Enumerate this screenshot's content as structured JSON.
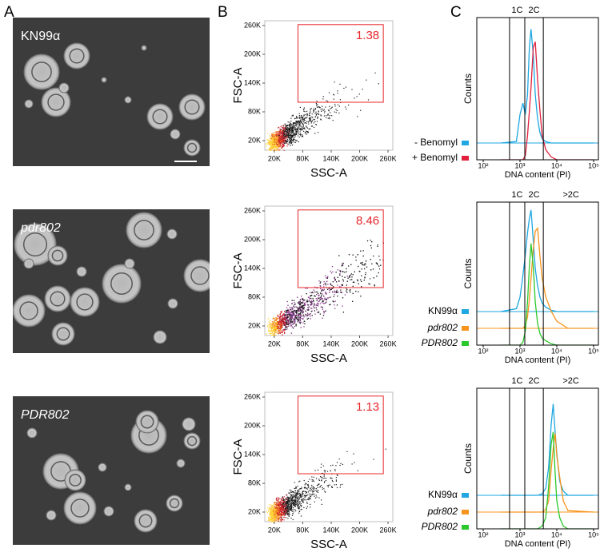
{
  "panel_labels": [
    "A",
    "B",
    "C"
  ],
  "images": [
    {
      "label": "KN99α",
      "italic": false
    },
    {
      "label": "pdr802",
      "italic": true
    },
    {
      "label": "PDR802",
      "italic": true
    }
  ],
  "chart_data": [
    {
      "type": "scatter-density",
      "xlabel": "SSC-A",
      "ylabel": "FSC-A",
      "xlim": [
        0,
        270000
      ],
      "ylim": [
        0,
        270000
      ],
      "xticks": [
        {
          "value": 20000,
          "label": "20K"
        },
        {
          "value": 80000,
          "label": "80K"
        },
        {
          "value": 140000,
          "label": "140K"
        },
        {
          "value": 200000,
          "label": "200K"
        },
        {
          "value": 260000,
          "label": "260K"
        }
      ],
      "yticks": [
        {
          "value": 20000,
          "label": "20K"
        },
        {
          "value": 80000,
          "label": "80K"
        },
        {
          "value": 140000,
          "label": "140K"
        },
        {
          "value": 200000,
          "label": "200K"
        },
        {
          "value": 260000,
          "label": "260K"
        }
      ],
      "gate_x": [
        70000,
        250000
      ],
      "gate_y": [
        100000,
        262000
      ],
      "gate_percent": 1.38,
      "gate_color": "#e8252a"
    },
    {
      "type": "scatter-density",
      "xlabel": "SSC-A",
      "ylabel": "FSC-A",
      "xlim": [
        0,
        270000
      ],
      "ylim": [
        0,
        270000
      ],
      "xticks": [
        {
          "value": 20000,
          "label": "20K"
        },
        {
          "value": 80000,
          "label": "80K"
        },
        {
          "value": 140000,
          "label": "140K"
        },
        {
          "value": 200000,
          "label": "200K"
        },
        {
          "value": 260000,
          "label": "260K"
        }
      ],
      "yticks": [
        {
          "value": 20000,
          "label": "20K"
        },
        {
          "value": 80000,
          "label": "80K"
        },
        {
          "value": 140000,
          "label": "140K"
        },
        {
          "value": 200000,
          "label": "200K"
        },
        {
          "value": 260000,
          "label": "260K"
        }
      ],
      "gate_x": [
        70000,
        250000
      ],
      "gate_y": [
        100000,
        262000
      ],
      "gate_percent": 8.46,
      "gate_color": "#e8252a"
    },
    {
      "type": "scatter-density",
      "xlabel": "SSC-A",
      "ylabel": "FSC-A",
      "xlim": [
        0,
        270000
      ],
      "ylim": [
        0,
        270000
      ],
      "xticks": [
        {
          "value": 20000,
          "label": "20K"
        },
        {
          "value": 80000,
          "label": "80K"
        },
        {
          "value": 140000,
          "label": "140K"
        },
        {
          "value": 200000,
          "label": "200K"
        },
        {
          "value": 260000,
          "label": "260K"
        }
      ],
      "yticks": [
        {
          "value": 20000,
          "label": "20K"
        },
        {
          "value": 80000,
          "label": "80K"
        },
        {
          "value": 140000,
          "label": "140K"
        },
        {
          "value": 200000,
          "label": "200K"
        },
        {
          "value": 260000,
          "label": "260K"
        }
      ],
      "gate_x": [
        70000,
        250000
      ],
      "gate_y": [
        100000,
        262000
      ],
      "gate_percent": 1.13,
      "gate_color": "#e8252a"
    },
    {
      "type": "histogram-overlay",
      "xlabel": "DNA content (PI)",
      "ylabel": "Counts",
      "log_x": true,
      "xlim": [
        67,
        135000
      ],
      "ylim": [
        0,
        100
      ],
      "xticks": [
        {
          "value": 100,
          "label": "10²"
        },
        {
          "value": 1000,
          "label": "10³"
        },
        {
          "value": 10000,
          "label": "10⁴"
        },
        {
          "value": 100000,
          "label": "10⁵"
        }
      ],
      "gate_lines": [
        520,
        1350,
        4300
      ],
      "gate_labels": [
        "1C",
        "2C"
      ],
      "x": [
        300,
        800,
        1000,
        1200,
        1400,
        1600,
        1800,
        2000,
        2300,
        2600,
        3000,
        3500,
        4000,
        5000,
        7000,
        10000,
        20000,
        100000
      ],
      "series": [
        {
          "name": "- Benomyl",
          "color": "#1ea7e1",
          "italic": false,
          "values": [
            0,
            1,
            20,
            28,
            20,
            34,
            67,
            80,
            62,
            34,
            17,
            7,
            3,
            1,
            0,
            0,
            0,
            0
          ]
        },
        {
          "name": "+ Benomyl",
          "color": "#e0203c",
          "italic": false,
          "values": [
            0,
            0,
            0,
            0,
            3,
            17,
            34,
            51,
            79,
            83,
            56,
            34,
            17,
            7,
            2,
            0,
            0,
            0
          ]
        }
      ]
    },
    {
      "type": "histogram-overlay",
      "xlabel": "DNA content (PI)",
      "ylabel": "Counts",
      "log_x": true,
      "xlim": [
        67,
        135000
      ],
      "ylim": [
        0,
        100
      ],
      "xticks": [
        {
          "value": 100,
          "label": "10²"
        },
        {
          "value": 1000,
          "label": "10³"
        },
        {
          "value": 10000,
          "label": "10⁴"
        },
        {
          "value": 100000,
          "label": "10⁵"
        }
      ],
      "gate_lines": [
        520,
        1350,
        4300
      ],
      "gate_labels": [
        "1C",
        "2C",
        ">2C"
      ],
      "x": [
        300,
        800,
        1000,
        1200,
        1400,
        1600,
        1800,
        2000,
        2300,
        2600,
        3000,
        3500,
        4000,
        5000,
        7000,
        10000,
        20000,
        100000
      ],
      "series": [
        {
          "name": "KN99α",
          "color": "#1ea7e1",
          "italic": false,
          "values": [
            0,
            2,
            10,
            25,
            40,
            55,
            65,
            71,
            50,
            30,
            18,
            10,
            6,
            3,
            1,
            0,
            0,
            0
          ]
        },
        {
          "name": "pdr802",
          "color": "#f7941d",
          "italic": true,
          "values": [
            0,
            0,
            0,
            0,
            2,
            8,
            20,
            35,
            55,
            68,
            70,
            50,
            35,
            22,
            12,
            5,
            0,
            0
          ]
        },
        {
          "name": "PDR802",
          "color": "#2bc82b",
          "italic": true,
          "values": [
            0,
            0,
            0,
            2,
            10,
            30,
            55,
            71,
            55,
            30,
            15,
            8,
            5,
            3,
            1,
            0,
            0,
            0
          ]
        }
      ]
    },
    {
      "type": "histogram-overlay",
      "xlabel": "DNA content (PI)",
      "ylabel": "Counts",
      "log_x": true,
      "xlim": [
        67,
        135000
      ],
      "ylim": [
        0,
        100
      ],
      "xticks": [
        {
          "value": 100,
          "label": "10²"
        },
        {
          "value": 1000,
          "label": "10³"
        },
        {
          "value": 10000,
          "label": "10⁴"
        },
        {
          "value": 100000,
          "label": "10⁵"
        }
      ],
      "gate_lines": [
        520,
        1350,
        4300
      ],
      "gate_labels": [
        "1C",
        "2C",
        ">2C"
      ],
      "x": [
        300,
        1000,
        3000,
        4000,
        5000,
        6000,
        7000,
        8000,
        9000,
        10000,
        12000,
        15000,
        20000,
        100000
      ],
      "series": [
        {
          "name": "KN99α",
          "color": "#1ea7e1",
          "italic": false,
          "values": [
            0,
            0,
            0,
            1,
            5,
            20,
            50,
            65,
            45,
            30,
            10,
            3,
            0,
            0
          ]
        },
        {
          "name": "pdr802",
          "color": "#f7941d",
          "italic": true,
          "values": [
            0,
            0,
            0,
            0,
            2,
            8,
            30,
            45,
            56,
            40,
            25,
            8,
            1,
            0
          ]
        },
        {
          "name": "PDR802",
          "color": "#2bc82b",
          "italic": true,
          "values": [
            0,
            0,
            0,
            2,
            8,
            30,
            60,
            69,
            40,
            20,
            8,
            2,
            0,
            0
          ]
        }
      ]
    }
  ]
}
